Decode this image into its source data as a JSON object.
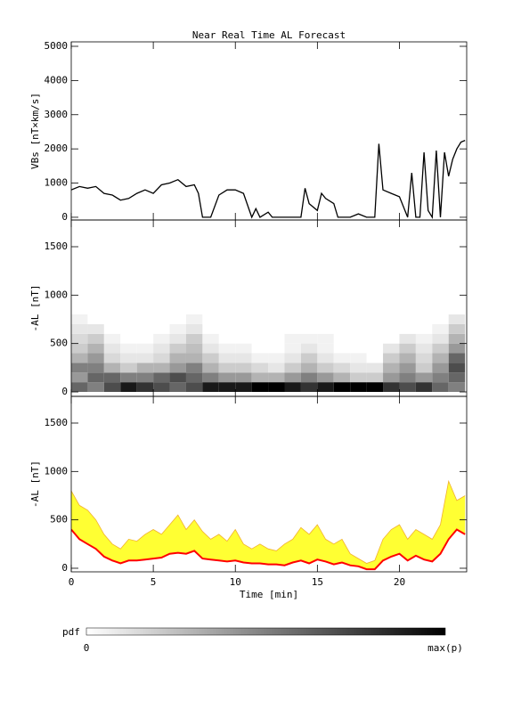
{
  "chart_data": [
    {
      "type": "line",
      "title": "Near Real Time AL Forecast",
      "ylabel": "VBs [nT×km/s]",
      "xlim": [
        0,
        24.1
      ],
      "xticks": [
        0,
        5,
        10,
        15,
        20
      ],
      "ylim": [
        -80,
        5130
      ],
      "yticks": [
        0,
        1000,
        2000,
        3000,
        4000,
        5000
      ],
      "color": "#000000",
      "x": [
        0,
        0.5,
        1,
        1.5,
        2,
        2.5,
        3,
        3.5,
        4,
        4.5,
        5,
        5.5,
        6,
        6.5,
        7,
        7.5,
        7.75,
        8,
        8.5,
        9,
        9.5,
        10,
        10.5,
        11,
        11.25,
        11.5,
        12,
        12.25,
        13,
        14,
        14.25,
        14.5,
        15,
        15.25,
        15.5,
        16,
        16.25,
        17,
        17.5,
        18,
        18.5,
        18.75,
        19,
        19.5,
        20,
        20.5,
        20.75,
        21,
        21.25,
        21.5,
        21.75,
        22,
        22.25,
        22.5,
        22.75,
        23,
        23.25,
        23.5,
        23.75,
        24
      ],
      "values": [
        800,
        900,
        850,
        900,
        700,
        650,
        500,
        550,
        700,
        800,
        700,
        950,
        1000,
        1100,
        900,
        950,
        700,
        0,
        0,
        650,
        800,
        800,
        700,
        0,
        250,
        0,
        150,
        0,
        0,
        0,
        850,
        400,
        200,
        700,
        550,
        400,
        0,
        0,
        100,
        0,
        0,
        2150,
        800,
        700,
        600,
        0,
        1300,
        0,
        0,
        1900,
        200,
        0,
        1950,
        0,
        1900,
        1200,
        1700,
        2000,
        2200,
        2250
      ]
    },
    {
      "type": "heatmap",
      "ylabel": "-AL [nT]",
      "xlim": [
        0,
        24.1
      ],
      "xticks": [
        0,
        5,
        10,
        15,
        20
      ],
      "ylim": [
        -46,
        1776
      ],
      "yticks": [
        0,
        500,
        1000,
        1500
      ],
      "x_edges": [
        0,
        1,
        2,
        3,
        4,
        5,
        6,
        7,
        8,
        9,
        10,
        11,
        12,
        13,
        14,
        15,
        16,
        17,
        18,
        19,
        20,
        21,
        22,
        23,
        24
      ],
      "y_edges": [
        0,
        100,
        200,
        300,
        400,
        500,
        600,
        700,
        800
      ],
      "z": [
        [
          0.6,
          0.4,
          0.5,
          0.3,
          0.2,
          0.15,
          0.1,
          0.05
        ],
        [
          0.5,
          0.6,
          0.5,
          0.4,
          0.3,
          0.2,
          0.1,
          0
        ],
        [
          0.7,
          0.6,
          0.3,
          0.15,
          0.1,
          0.05,
          0,
          0
        ],
        [
          0.9,
          0.5,
          0.2,
          0.1,
          0.05,
          0,
          0,
          0
        ],
        [
          0.8,
          0.5,
          0.3,
          0.1,
          0.05,
          0,
          0,
          0
        ],
        [
          0.7,
          0.6,
          0.3,
          0.15,
          0.1,
          0.05,
          0,
          0
        ],
        [
          0.6,
          0.7,
          0.4,
          0.3,
          0.2,
          0.1,
          0.05,
          0
        ],
        [
          0.7,
          0.6,
          0.5,
          0.3,
          0.25,
          0.2,
          0.1,
          0.05
        ],
        [
          0.9,
          0.5,
          0.3,
          0.2,
          0.1,
          0.05,
          0,
          0
        ],
        [
          0.9,
          0.4,
          0.2,
          0.1,
          0.05,
          0,
          0,
          0
        ],
        [
          0.9,
          0.4,
          0.2,
          0.1,
          0.05,
          0,
          0,
          0
        ],
        [
          1,
          0.3,
          0.15,
          0.05,
          0,
          0,
          0,
          0
        ],
        [
          1,
          0.3,
          0.1,
          0.05,
          0,
          0,
          0,
          0
        ],
        [
          0.9,
          0.4,
          0.2,
          0.1,
          0.05,
          0.05,
          0,
          0
        ],
        [
          0.8,
          0.5,
          0.3,
          0.2,
          0.1,
          0.05,
          0,
          0
        ],
        [
          0.9,
          0.4,
          0.2,
          0.1,
          0.05,
          0.05,
          0,
          0
        ],
        [
          1,
          0.3,
          0.15,
          0.05,
          0,
          0,
          0,
          0
        ],
        [
          1,
          0.2,
          0.1,
          0.05,
          0,
          0,
          0,
          0
        ],
        [
          1,
          0.2,
          0.1,
          0,
          0,
          0,
          0,
          0
        ],
        [
          0.8,
          0.4,
          0.3,
          0.2,
          0.1,
          0,
          0,
          0
        ],
        [
          0.7,
          0.5,
          0.4,
          0.3,
          0.2,
          0.1,
          0,
          0
        ],
        [
          0.8,
          0.4,
          0.2,
          0.15,
          0.1,
          0.05,
          0,
          0
        ],
        [
          0.6,
          0.5,
          0.4,
          0.3,
          0.2,
          0.1,
          0.05,
          0
        ],
        [
          0.5,
          0.6,
          0.7,
          0.6,
          0.4,
          0.3,
          0.2,
          0.1
        ]
      ],
      "colorbar": {
        "label": "pdf",
        "min_label": "0",
        "max_label": "max(p)"
      }
    },
    {
      "type": "band",
      "ylabel": "-AL [nT]",
      "xlabel": "Time [min]",
      "xlim": [
        0,
        24.1
      ],
      "xticks": [
        0,
        5,
        10,
        15,
        20
      ],
      "ylim": [
        -37,
        1776
      ],
      "yticks": [
        0,
        500,
        1000,
        1500
      ],
      "x": [
        0,
        0.5,
        1,
        1.5,
        2,
        2.5,
        3,
        3.5,
        4,
        4.5,
        5,
        5.5,
        6,
        6.5,
        7,
        7.5,
        8,
        8.5,
        9,
        9.5,
        10,
        10.5,
        11,
        11.5,
        12,
        12.5,
        13,
        13.5,
        14,
        14.5,
        15,
        15.5,
        16,
        16.5,
        17,
        17.5,
        18,
        18.5,
        19,
        19.5,
        20,
        20.5,
        21,
        21.5,
        22,
        22.5,
        23,
        23.5,
        24
      ],
      "band": {
        "color": "#ffff33",
        "edge_color": "#f0b030",
        "upper": [
          800,
          650,
          600,
          500,
          350,
          250,
          200,
          300,
          280,
          350,
          400,
          350,
          450,
          550,
          400,
          500,
          380,
          300,
          350,
          280,
          400,
          250,
          200,
          250,
          200,
          180,
          250,
          300,
          420,
          350,
          450,
          300,
          250,
          300,
          150,
          100,
          50,
          80,
          300,
          400,
          450,
          300,
          400,
          350,
          300,
          450,
          900,
          700,
          750
        ],
        "lower": [
          400,
          300,
          250,
          200,
          120,
          80,
          50,
          80,
          80,
          90,
          100,
          110,
          150,
          160,
          150,
          180,
          100,
          90,
          80,
          70,
          80,
          60,
          50,
          50,
          40,
          40,
          30,
          60,
          80,
          50,
          90,
          70,
          40,
          60,
          30,
          20,
          -10,
          -10,
          80,
          120,
          150,
          80,
          130,
          90,
          70,
          150,
          300,
          400,
          350
        ]
      },
      "line": {
        "color": "#ff0000",
        "values": [
          400,
          300,
          250,
          200,
          120,
          80,
          50,
          80,
          80,
          90,
          100,
          110,
          150,
          160,
          150,
          180,
          100,
          90,
          80,
          70,
          80,
          60,
          50,
          50,
          40,
          40,
          30,
          60,
          80,
          50,
          90,
          70,
          40,
          60,
          30,
          20,
          -10,
          -10,
          80,
          120,
          150,
          80,
          130,
          90,
          70,
          150,
          300,
          400,
          350
        ]
      }
    }
  ]
}
